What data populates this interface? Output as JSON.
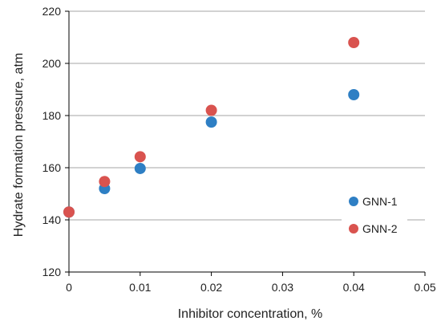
{
  "chart_data": {
    "type": "scatter",
    "title": "",
    "xlabel": "Inhibitor concentration, %",
    "ylabel": "Hydrate formation pressure, atm",
    "xlim": [
      0,
      0.05
    ],
    "ylim": [
      120,
      220
    ],
    "x_ticks": [
      0,
      0.01,
      0.02,
      0.03,
      0.04,
      0.05
    ],
    "x_tick_labels": [
      "0",
      "0.01",
      "0.02",
      "0.03",
      "0.04",
      "0.05"
    ],
    "y_ticks": [
      120,
      140,
      160,
      180,
      200,
      220
    ],
    "y_tick_labels": [
      "120",
      "140",
      "160",
      "180",
      "200",
      "220"
    ],
    "grid": "horizontal",
    "legend_position": "right",
    "series": [
      {
        "name": "GNN-1",
        "color": "#2e7fc4",
        "x": [
          0,
          0.005,
          0.01,
          0.02,
          0.04
        ],
        "y": [
          143,
          152,
          159.7,
          177.5,
          188
        ]
      },
      {
        "name": "GNN-2",
        "color": "#d9534f",
        "x": [
          0,
          0.005,
          0.01,
          0.02,
          0.04
        ],
        "y": [
          143,
          154.7,
          164.2,
          182,
          208
        ]
      }
    ]
  }
}
